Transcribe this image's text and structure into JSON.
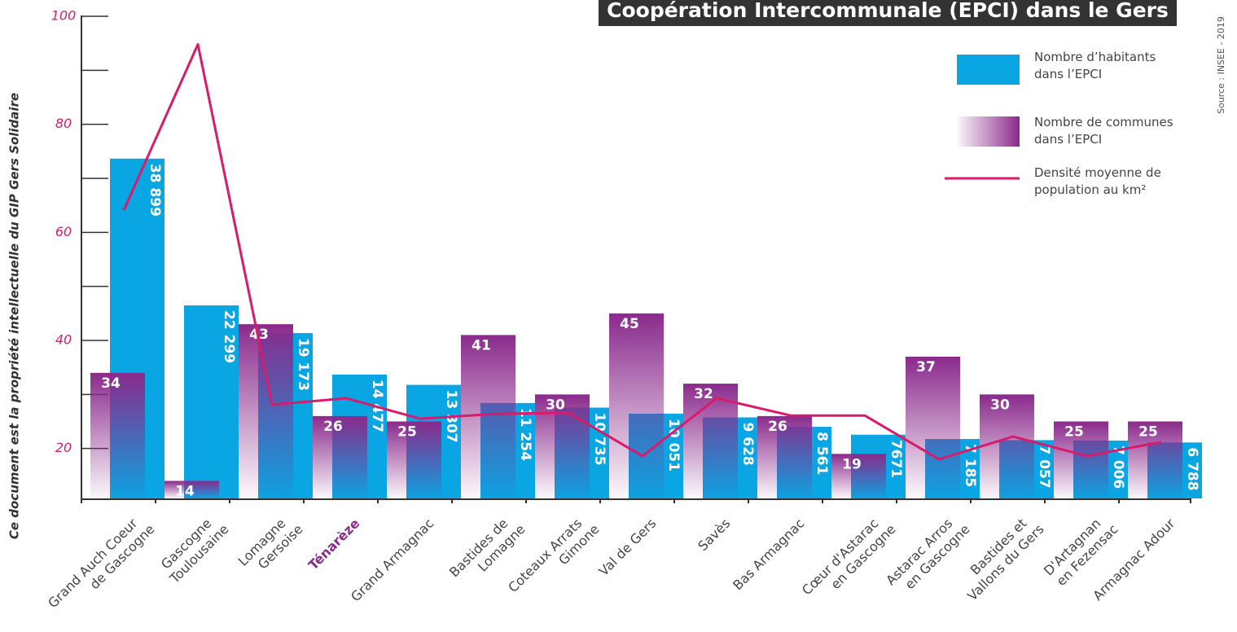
{
  "chart_data": {
    "type": "bar",
    "title": "Coopération Intercommunale (EPCI) dans le Gers",
    "side_note": "Ce document est la propriété intellectuelle du GIP Gers Solidaire",
    "source": "Source : INSEE - 2019",
    "categories": [
      [
        "Grand Auch Coeur",
        "de Gascogne"
      ],
      [
        "Gascogne",
        "Toulousaine"
      ],
      [
        "Lomagne",
        "Gersoise"
      ],
      [
        "Ténarèze"
      ],
      [
        "Grand Armagnac"
      ],
      [
        "Bastides de",
        "Lomagne"
      ],
      [
        "Coteaux Arrats",
        "Gimone"
      ],
      [
        "Val de Gers"
      ],
      [
        "Savès"
      ],
      [
        "Bas Armagnac"
      ],
      [
        "Cœur d'Astarac",
        "en Gascogne"
      ],
      [
        "Astarac Arros",
        "en Gascogne"
      ],
      [
        "Bastides et",
        "Vallons du Gers"
      ],
      [
        "D'Artagnan",
        "en Fezensac"
      ],
      [
        "Armagnac Adour"
      ]
    ],
    "highlighted_category": "Ténarèze",
    "highlight_color": "#8a2a8c",
    "ylim": [
      10,
      100
    ],
    "yticks": [
      20,
      40,
      60,
      80,
      100
    ],
    "yminor_ticks": [
      30,
      50,
      70,
      90
    ],
    "y2lim": [
      0,
      55000
    ],
    "series": [
      {
        "name": "Nombre d’habitants dans l’EPCI",
        "color": "#0aa5e3",
        "axis": "y2",
        "values": [
          38899,
          22299,
          19173,
          14477,
          13307,
          11254,
          10735,
          10051,
          9628,
          8561,
          7671,
          7185,
          7057,
          7006,
          6788
        ],
        "value_labels": [
          "38 899",
          "22 299",
          "19 173",
          "14 477",
          "13 307",
          "11 254",
          "10 735",
          "10 051",
          "9 628",
          "8 561",
          "7671",
          "7 185",
          "7 057",
          "7 006",
          "6 788"
        ]
      },
      {
        "name": "Nombre de communes dans l’EPCI",
        "color": "#8a2a8c",
        "values": [
          34,
          14,
          43,
          26,
          25,
          41,
          30,
          45,
          32,
          26,
          19,
          37,
          30,
          25,
          25
        ]
      },
      {
        "name": "Densité moyenne de population au km²",
        "color": "#d81b6a",
        "type": "line",
        "values": [
          64.1,
          94.8,
          28.1,
          29.3,
          25.5,
          26.4,
          26.6,
          18.6,
          29.3,
          26.1,
          26.1,
          18.0,
          22.2,
          18.6,
          21.2
        ]
      }
    ]
  }
}
